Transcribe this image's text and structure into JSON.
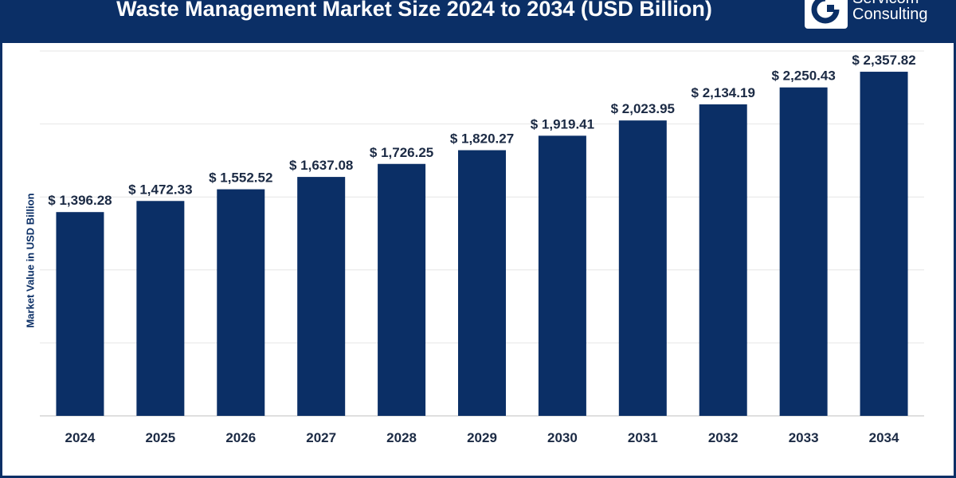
{
  "header": {
    "brand_line1": "Servicom",
    "brand_line2": "Consulting"
  },
  "colors": {
    "header_bg": "#0b2f66",
    "bar": "#0b2f66",
    "grid": "#e6e6e6"
  },
  "chart_data": {
    "type": "bar",
    "title": "Waste Management Market Size 2024 to 2034 (USD Billion)",
    "xlabel": "",
    "ylabel": "Market Value in USD Billion",
    "categories": [
      "2024",
      "2025",
      "2026",
      "2027",
      "2028",
      "2029",
      "2030",
      "2031",
      "2032",
      "2033",
      "2034"
    ],
    "values": [
      1396.28,
      1472.33,
      1552.52,
      1637.08,
      1726.25,
      1820.27,
      1919.41,
      2023.95,
      2134.19,
      2250.43,
      2357.82
    ],
    "value_labels": [
      "$ 1,396.28",
      "$ 1,472.33",
      "$ 1,552.52",
      "$ 1,637.08",
      "$ 1,726.25",
      "$ 1,820.27",
      "$ 1,919.41",
      "$ 2,023.95",
      "$ 2,134.19",
      "$ 2,250.43",
      "$ 2,357.82"
    ],
    "ylim": [
      0,
      2500
    ],
    "grid": true,
    "legend": "none"
  }
}
